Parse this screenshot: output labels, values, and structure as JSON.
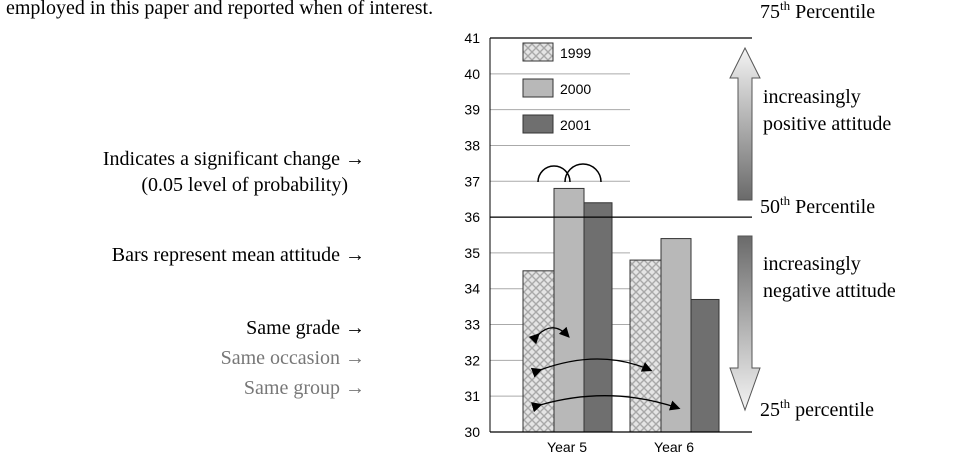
{
  "header_text": "employed in this paper and reported when of interest.",
  "chart_data": {
    "type": "bar",
    "categories": [
      "Year 5",
      "Year 6"
    ],
    "series": [
      {
        "name": "1999",
        "color": "#d4d4d4",
        "pattern": "crosshatch",
        "values": [
          34.5,
          34.8
        ]
      },
      {
        "name": "2000",
        "color": "#b8b8b8",
        "values": [
          36.8,
          35.4
        ]
      },
      {
        "name": "2001",
        "color": "#6f6f6f",
        "values": [
          36.4,
          33.7
        ]
      }
    ],
    "ylim": [
      30,
      41
    ],
    "yticks": [
      30,
      31,
      32,
      33,
      34,
      35,
      36,
      37,
      38,
      39,
      40,
      41
    ],
    "grid": true,
    "legend": "top-left",
    "percentiles": [
      {
        "number": "75",
        "suffix": "th",
        "label": "Percentile",
        "value": 41
      },
      {
        "number": "50",
        "suffix": "th",
        "label": "Percentile",
        "value": 36
      },
      {
        "number": "25",
        "suffix": "th",
        "label": "percentile",
        "value": 30
      }
    ],
    "attitude_notes": [
      [
        "increasingly",
        "positive attitude"
      ],
      [
        "increasingly",
        "negative attitude"
      ]
    ],
    "annotations": [
      "Indicates a significant change →",
      "(0.05 level of probability)",
      "Bars represent mean attitude →",
      "Same grade →",
      "Same occasion →",
      "Same group →"
    ]
  }
}
